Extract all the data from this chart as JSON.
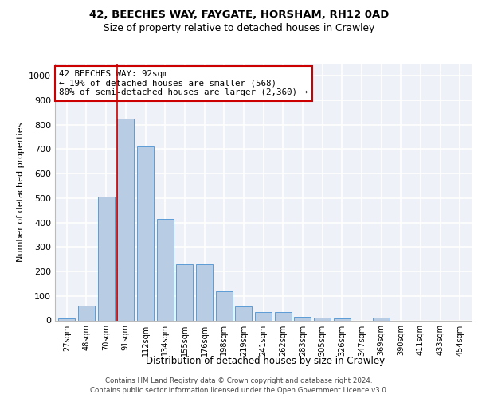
{
  "title1": "42, BEECHES WAY, FAYGATE, HORSHAM, RH12 0AD",
  "title2": "Size of property relative to detached houses in Crawley",
  "xlabel": "Distribution of detached houses by size in Crawley",
  "ylabel": "Number of detached properties",
  "categories": [
    "27sqm",
    "48sqm",
    "70sqm",
    "91sqm",
    "112sqm",
    "134sqm",
    "155sqm",
    "176sqm",
    "198sqm",
    "219sqm",
    "241sqm",
    "262sqm",
    "283sqm",
    "305sqm",
    "326sqm",
    "347sqm",
    "369sqm",
    "390sqm",
    "411sqm",
    "433sqm",
    "454sqm"
  ],
  "values": [
    8,
    60,
    505,
    825,
    710,
    415,
    230,
    230,
    120,
    58,
    35,
    35,
    15,
    12,
    8,
    0,
    10,
    0,
    0,
    0,
    0
  ],
  "bar_color": "#b8cce4",
  "bar_edge_color": "#5b9bd5",
  "annotation_text": "42 BEECHES WAY: 92sqm\n← 19% of detached houses are smaller (568)\n80% of semi-detached houses are larger (2,360) →",
  "annotation_box_edge_color": "#cc0000",
  "red_line_index": 3,
  "ylim": [
    0,
    1050
  ],
  "yticks": [
    0,
    100,
    200,
    300,
    400,
    500,
    600,
    700,
    800,
    900,
    1000
  ],
  "footer1": "Contains HM Land Registry data © Crown copyright and database right 2024.",
  "footer2": "Contains public sector information licensed under the Open Government Licence v3.0.",
  "bg_color": "#eef2f8",
  "grid_color": "#ffffff"
}
